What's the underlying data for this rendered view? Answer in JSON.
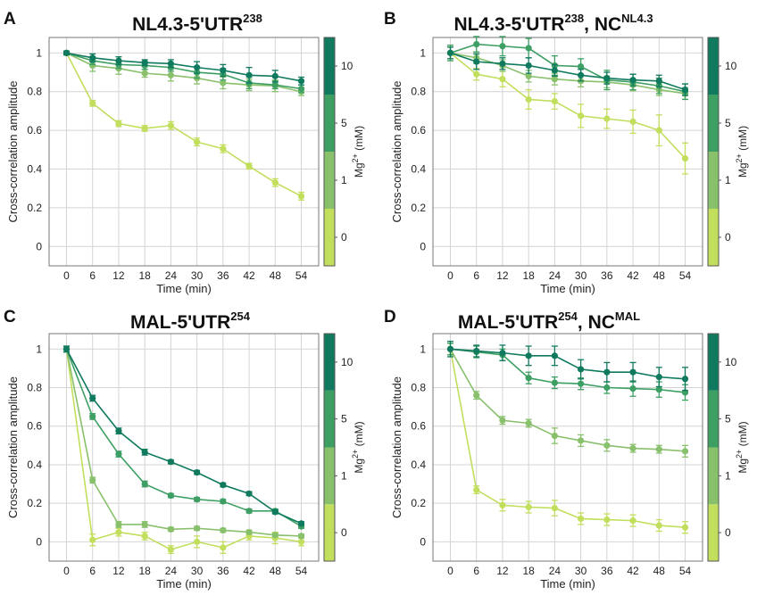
{
  "chart_data": [
    {
      "type": "line",
      "panel": "A",
      "title": "NL4.3-5'UTR",
      "title_sup": "238",
      "title_rest": "",
      "title_rest_sup": "",
      "xlabel": "Time (min)",
      "ylabel": "Cross-correlation amplitude",
      "x": [
        0,
        6,
        12,
        18,
        24,
        30,
        36,
        42,
        48,
        54
      ],
      "xlim": [
        -4,
        58
      ],
      "ylim": [
        -0.1,
        1.08
      ],
      "yticks": [
        0,
        0.2,
        0.4,
        0.6,
        0.8,
        1
      ],
      "grid": true,
      "series": [
        {
          "mg": "0",
          "color": "#c2de5d",
          "values": [
            1.0,
            0.74,
            0.635,
            0.61,
            0.625,
            0.54,
            0.505,
            0.415,
            0.33,
            0.26
          ],
          "errors": [
            0.01,
            0.015,
            0.015,
            0.015,
            0.02,
            0.02,
            0.02,
            0.015,
            0.02,
            0.02
          ]
        },
        {
          "mg": "1",
          "color": "#88c06b",
          "values": [
            1.0,
            0.935,
            0.92,
            0.895,
            0.885,
            0.87,
            0.845,
            0.835,
            0.83,
            0.8
          ],
          "errors": [
            0.01,
            0.03,
            0.03,
            0.02,
            0.03,
            0.03,
            0.03,
            0.03,
            0.03,
            0.02
          ]
        },
        {
          "mg": "5",
          "color": "#3e9f64",
          "values": [
            1.0,
            0.96,
            0.94,
            0.935,
            0.925,
            0.9,
            0.89,
            0.845,
            0.835,
            0.815
          ],
          "errors": [
            0.01,
            0.02,
            0.02,
            0.02,
            0.02,
            0.03,
            0.03,
            0.03,
            0.02,
            0.02
          ]
        },
        {
          "mg": "10",
          "color": "#107a5e",
          "values": [
            1.0,
            0.975,
            0.96,
            0.95,
            0.945,
            0.925,
            0.91,
            0.885,
            0.88,
            0.855
          ],
          "errors": [
            0.01,
            0.02,
            0.02,
            0.015,
            0.02,
            0.03,
            0.03,
            0.04,
            0.03,
            0.02
          ]
        }
      ],
      "colorbar": {
        "label": "Mg",
        "label_sup": "2+",
        "label_rest": " (mM)",
        "ticks": [
          "0",
          "1",
          "5",
          "10"
        ]
      }
    },
    {
      "type": "line",
      "panel": "B",
      "title": "NL4.3-5'UTR",
      "title_sup": "238",
      "title_rest": ", NC",
      "title_rest_sup": "NL4.3",
      "xlabel": "Time (min)",
      "ylabel": "Cross-correlation amplitude",
      "x": [
        0,
        6,
        12,
        18,
        24,
        30,
        36,
        42,
        48,
        54
      ],
      "xlim": [
        -4,
        58
      ],
      "ylim": [
        -0.1,
        1.08
      ],
      "yticks": [
        0,
        0.2,
        0.4,
        0.6,
        0.8,
        1
      ],
      "grid": true,
      "series": [
        {
          "mg": "0",
          "color": "#c2de5d",
          "values": [
            1.0,
            0.89,
            0.865,
            0.76,
            0.75,
            0.675,
            0.66,
            0.645,
            0.6,
            0.455
          ],
          "errors": [
            0.04,
            0.03,
            0.04,
            0.05,
            0.04,
            0.06,
            0.05,
            0.06,
            0.08,
            0.08
          ]
        },
        {
          "mg": "1",
          "color": "#88c06b",
          "values": [
            1.0,
            0.975,
            0.935,
            0.88,
            0.865,
            0.855,
            0.85,
            0.835,
            0.81,
            0.79
          ],
          "errors": [
            0.03,
            0.03,
            0.03,
            0.03,
            0.03,
            0.03,
            0.03,
            0.03,
            0.03,
            0.03
          ]
        },
        {
          "mg": "5",
          "color": "#3e9f64",
          "values": [
            1.0,
            1.045,
            1.035,
            1.025,
            0.935,
            0.93,
            0.86,
            0.85,
            0.83,
            0.8
          ],
          "errors": [
            0.04,
            0.04,
            0.05,
            0.05,
            0.05,
            0.04,
            0.05,
            0.04,
            0.04,
            0.04
          ]
        },
        {
          "mg": "10",
          "color": "#107a5e",
          "values": [
            1.0,
            0.955,
            0.945,
            0.935,
            0.91,
            0.885,
            0.87,
            0.86,
            0.855,
            0.81
          ],
          "errors": [
            0.03,
            0.04,
            0.03,
            0.04,
            0.03,
            0.03,
            0.03,
            0.03,
            0.03,
            0.03
          ]
        }
      ],
      "colorbar": {
        "label": "Mg",
        "label_sup": "2+",
        "label_rest": " (mM)",
        "ticks": [
          "0",
          "1",
          "5",
          "10"
        ]
      }
    },
    {
      "type": "line",
      "panel": "C",
      "title": "MAL-5'UTR",
      "title_sup": "254",
      "title_rest": "",
      "title_rest_sup": "",
      "xlabel": "Time (min)",
      "ylabel": "Cross-correlation amplitude",
      "x": [
        0,
        6,
        12,
        18,
        24,
        30,
        36,
        42,
        48,
        54
      ],
      "xlim": [
        -4,
        58
      ],
      "ylim": [
        -0.1,
        1.08
      ],
      "yticks": [
        0,
        0.2,
        0.4,
        0.6,
        0.8,
        1
      ],
      "grid": true,
      "series": [
        {
          "mg": "0",
          "color": "#c2de5d",
          "values": [
            1.0,
            0.01,
            0.05,
            0.03,
            -0.04,
            0.0,
            -0.03,
            0.03,
            0.02,
            0.0
          ],
          "errors": [
            0.015,
            0.03,
            0.02,
            0.02,
            0.02,
            0.03,
            0.03,
            0.02,
            0.03,
            0.02
          ]
        },
        {
          "mg": "1",
          "color": "#88c06b",
          "values": [
            1.0,
            0.32,
            0.09,
            0.09,
            0.065,
            0.07,
            0.06,
            0.05,
            0.035,
            0.03
          ],
          "errors": [
            0.015,
            0.015,
            0.015,
            0.015,
            0.01,
            0.01,
            0.01,
            0.01,
            0.01,
            0.01
          ]
        },
        {
          "mg": "5",
          "color": "#3e9f64",
          "values": [
            1.0,
            0.65,
            0.455,
            0.3,
            0.24,
            0.22,
            0.21,
            0.16,
            0.16,
            0.08
          ],
          "errors": [
            0.015,
            0.015,
            0.015,
            0.015,
            0.01,
            0.01,
            0.01,
            0.01,
            0.01,
            0.01
          ]
        },
        {
          "mg": "10",
          "color": "#107a5e",
          "values": [
            1.0,
            0.745,
            0.575,
            0.465,
            0.415,
            0.36,
            0.295,
            0.25,
            0.155,
            0.095
          ],
          "errors": [
            0.015,
            0.015,
            0.015,
            0.015,
            0.01,
            0.01,
            0.01,
            0.01,
            0.01,
            0.01
          ]
        }
      ],
      "colorbar": {
        "label": "Mg",
        "label_sup": "2+",
        "label_rest": " (mM)",
        "ticks": [
          "0",
          "1",
          "5",
          "10"
        ]
      }
    },
    {
      "type": "line",
      "panel": "D",
      "title": "MAL-5'UTR",
      "title_sup": "254",
      "title_rest": ", NC",
      "title_rest_sup": "MAL",
      "xlabel": "Time (min)",
      "ylabel": "Cross-correlation amplitude",
      "x": [
        0,
        6,
        12,
        18,
        24,
        30,
        36,
        42,
        48,
        54
      ],
      "xlim": [
        -4,
        58
      ],
      "ylim": [
        -0.1,
        1.08
      ],
      "yticks": [
        0,
        0.2,
        0.4,
        0.6,
        0.8,
        1
      ],
      "grid": true,
      "series": [
        {
          "mg": "0",
          "color": "#c2de5d",
          "values": [
            1.0,
            0.27,
            0.19,
            0.18,
            0.175,
            0.12,
            0.115,
            0.11,
            0.085,
            0.075
          ],
          "errors": [
            0.03,
            0.02,
            0.03,
            0.03,
            0.04,
            0.03,
            0.03,
            0.03,
            0.03,
            0.03
          ]
        },
        {
          "mg": "1",
          "color": "#88c06b",
          "values": [
            1.0,
            0.76,
            0.63,
            0.615,
            0.55,
            0.525,
            0.5,
            0.485,
            0.48,
            0.47
          ],
          "errors": [
            0.03,
            0.02,
            0.02,
            0.02,
            0.04,
            0.03,
            0.03,
            0.02,
            0.02,
            0.03
          ]
        },
        {
          "mg": "5",
          "color": "#3e9f64",
          "values": [
            1.0,
            0.985,
            0.97,
            0.85,
            0.825,
            0.82,
            0.8,
            0.795,
            0.79,
            0.775
          ],
          "errors": [
            0.03,
            0.03,
            0.03,
            0.03,
            0.03,
            0.03,
            0.03,
            0.04,
            0.04,
            0.04
          ]
        },
        {
          "mg": "10",
          "color": "#107a5e",
          "values": [
            1.0,
            0.99,
            0.98,
            0.965,
            0.965,
            0.895,
            0.88,
            0.88,
            0.855,
            0.845
          ],
          "errors": [
            0.04,
            0.03,
            0.04,
            0.05,
            0.05,
            0.05,
            0.05,
            0.05,
            0.05,
            0.06
          ]
        }
      ],
      "colorbar": {
        "label": "Mg",
        "label_sup": "2+",
        "label_rest": " (mM)",
        "ticks": [
          "0",
          "1",
          "5",
          "10"
        ]
      }
    }
  ]
}
